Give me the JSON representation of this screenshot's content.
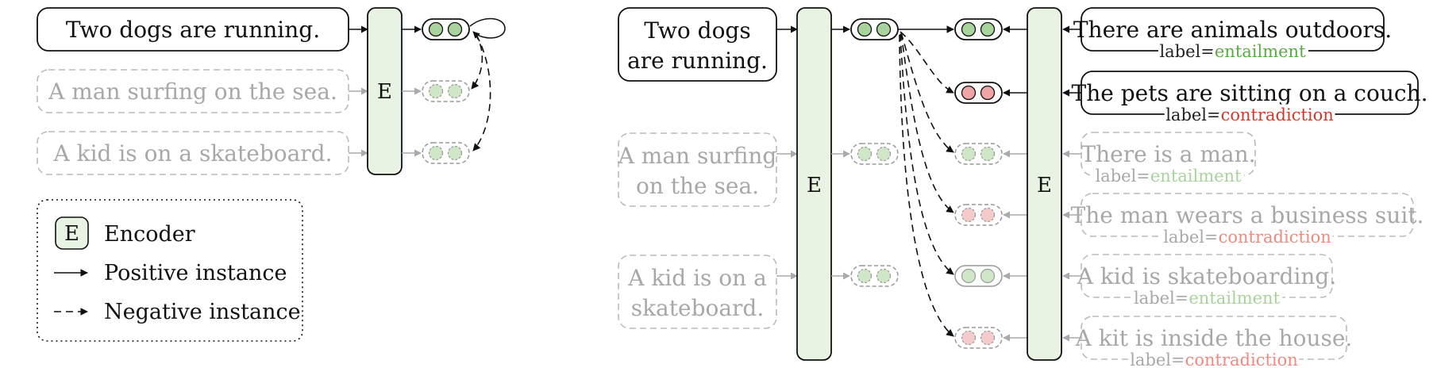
{
  "colors": {
    "encoder_fill": "#e8f3e4",
    "embed_green": "#a9d39d",
    "embed_red": "#efa5a5",
    "entailment": "#5aaa45",
    "contradiction": "#d23a2a",
    "faded": "#b5b5b5"
  },
  "left": {
    "sentences": [
      "Two dogs are running.",
      "A man surfing on the sea.",
      "A kid is on a skateboard."
    ],
    "encoder": "E"
  },
  "legend": {
    "encoder_icon": "E",
    "encoder_label": "Encoder",
    "positive_label": "Positive instance",
    "negative_label": "Negative instance"
  },
  "right": {
    "encoder": "E",
    "premises": [
      {
        "lines": [
          "Two dogs",
          "are running."
        ]
      },
      {
        "lines": [
          "A man surfing",
          "on the sea."
        ]
      },
      {
        "lines": [
          "A kid is on a",
          "skateboard."
        ]
      }
    ],
    "label_prefix": "label=",
    "hypotheses": [
      {
        "text": "There are animals outdoors.",
        "label": "entailment"
      },
      {
        "text": "The pets are sitting on a couch.",
        "label": "contradiction"
      },
      {
        "text": "There is a man.",
        "label": "entailment"
      },
      {
        "text": "The man wears a business suit.",
        "label": "contradiction"
      },
      {
        "text": "A kid is skateboarding.",
        "label": "entailment"
      },
      {
        "text": "A kit is inside the house.",
        "label": "contradiction"
      }
    ]
  }
}
